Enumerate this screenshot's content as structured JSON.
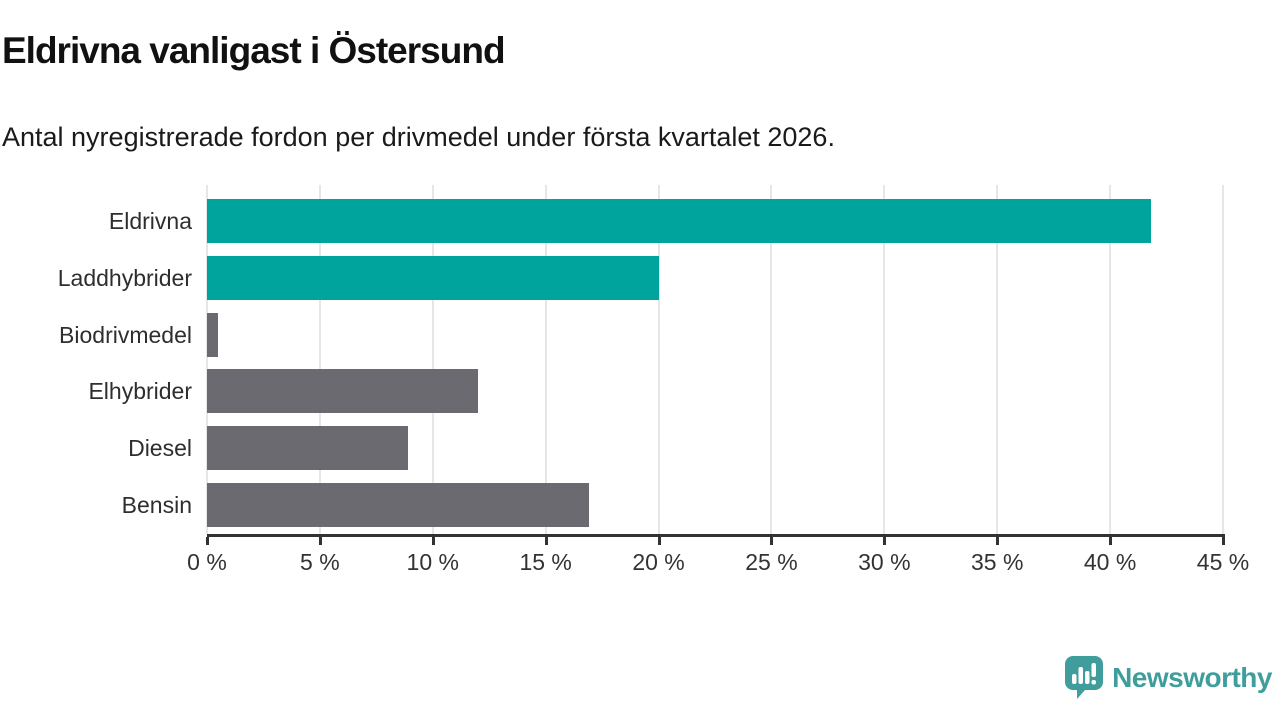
{
  "chart_data": {
    "type": "bar",
    "orientation": "horizontal",
    "title": "Eldrivna vanligast i Östersund",
    "subtitle": "Antal nyregistrerade fordon per drivmedel under första kvartalet 2026.",
    "categories": [
      "Eldrivna",
      "Laddhybrider",
      "Biodrivmedel",
      "Elhybrider",
      "Diesel",
      "Bensin"
    ],
    "values": [
      41.8,
      20,
      0.5,
      12,
      8.9,
      16.9
    ],
    "bar_colors": [
      "#00a49c",
      "#00a49c",
      "#6b6a71",
      "#6b6a71",
      "#6b6a71",
      "#6b6a71"
    ],
    "xlabel": "",
    "ylabel": "",
    "xlim": [
      0,
      45
    ],
    "x_tick_step": 5,
    "x_ticks": [
      "0 %",
      "5 %",
      "10 %",
      "15 %",
      "20 %",
      "25 %",
      "30 %",
      "35 %",
      "40 %",
      "45 %"
    ],
    "grid": "vertical-gridlines-on",
    "legend": "none"
  },
  "colors": {
    "accent_teal": "#00a49c",
    "neutral_gray": "#6b6a71",
    "gridline": "#e6e6e6",
    "axis": "#333333",
    "logo_teal": "#3f9e9c"
  },
  "footer": {
    "brand": "Newsworthy"
  }
}
